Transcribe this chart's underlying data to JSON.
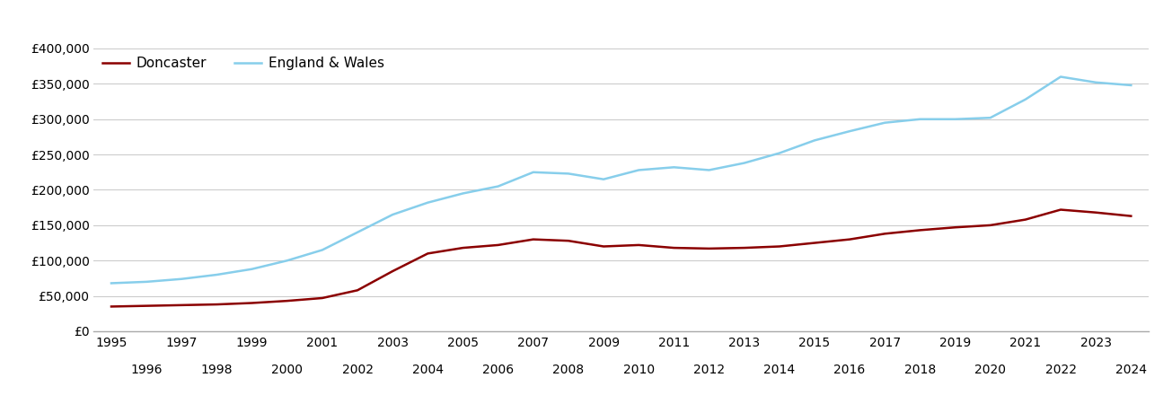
{
  "years": [
    1995,
    1996,
    1997,
    1998,
    1999,
    2000,
    2001,
    2002,
    2003,
    2004,
    2005,
    2006,
    2007,
    2008,
    2009,
    2010,
    2011,
    2012,
    2013,
    2014,
    2015,
    2016,
    2017,
    2018,
    2019,
    2020,
    2021,
    2022,
    2023,
    2024
  ],
  "doncaster": [
    35000,
    36000,
    37000,
    38000,
    40000,
    43000,
    47000,
    58000,
    85000,
    110000,
    118000,
    122000,
    130000,
    128000,
    120000,
    122000,
    118000,
    117000,
    118000,
    120000,
    125000,
    130000,
    138000,
    143000,
    147000,
    150000,
    158000,
    172000,
    168000,
    163000
  ],
  "england_wales": [
    68000,
    70000,
    74000,
    80000,
    88000,
    100000,
    115000,
    140000,
    165000,
    182000,
    195000,
    205000,
    225000,
    223000,
    215000,
    228000,
    232000,
    228000,
    238000,
    252000,
    270000,
    283000,
    295000,
    300000,
    300000,
    302000,
    328000,
    360000,
    352000,
    348000
  ],
  "doncaster_color": "#8B0000",
  "england_wales_color": "#87CEEB",
  "background_color": "#ffffff",
  "grid_color": "#cccccc",
  "ylim": [
    0,
    400000
  ],
  "yticks": [
    0,
    50000,
    100000,
    150000,
    200000,
    250000,
    300000,
    350000,
    400000
  ],
  "legend_labels": [
    "Doncaster",
    "England & Wales"
  ],
  "line_width": 1.8,
  "tick_fontsize": 10,
  "legend_fontsize": 11
}
